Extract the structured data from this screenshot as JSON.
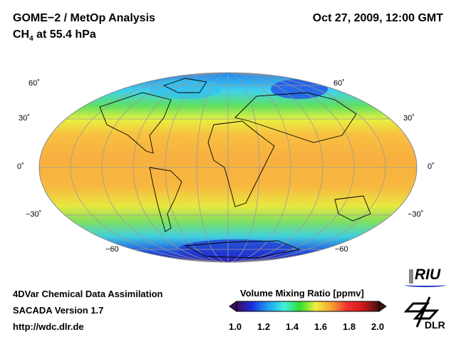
{
  "header": {
    "title": "GOME−2 / MetOp Analysis",
    "species": "CH",
    "species_sub": "4",
    "level": " at 55.4 hPa",
    "datetime": "Oct 27, 2009, 12:00 GMT"
  },
  "map": {
    "lat_labels_left": [
      "60˚",
      "30˚",
      "0˚",
      "−30˚",
      "−60"
    ],
    "lat_labels_right": [
      "60˚",
      "30˚",
      "0˚",
      "−30˚",
      "−60"
    ]
  },
  "footer": {
    "line1": "4DVar Chemical Data Assimilation",
    "line2": "SACADA Version 1.7",
    "line3": "http://wdc.dlr.de"
  },
  "colorbar": {
    "title": "Volume Mixing Ratio [ppmv]",
    "ticks": [
      "1.0",
      "1.2",
      "1.4",
      "1.6",
      "1.8",
      "2.0"
    ],
    "min": 1.0,
    "max": 2.0,
    "colors": [
      "#3a0a5a",
      "#1a30e0",
      "#20a0f0",
      "#40f0e0",
      "#30e030",
      "#f0f040",
      "#f8a030",
      "#f03030",
      "#d01818",
      "#401010"
    ]
  },
  "logos": {
    "riu": "RIU",
    "dlr": "DLR"
  }
}
